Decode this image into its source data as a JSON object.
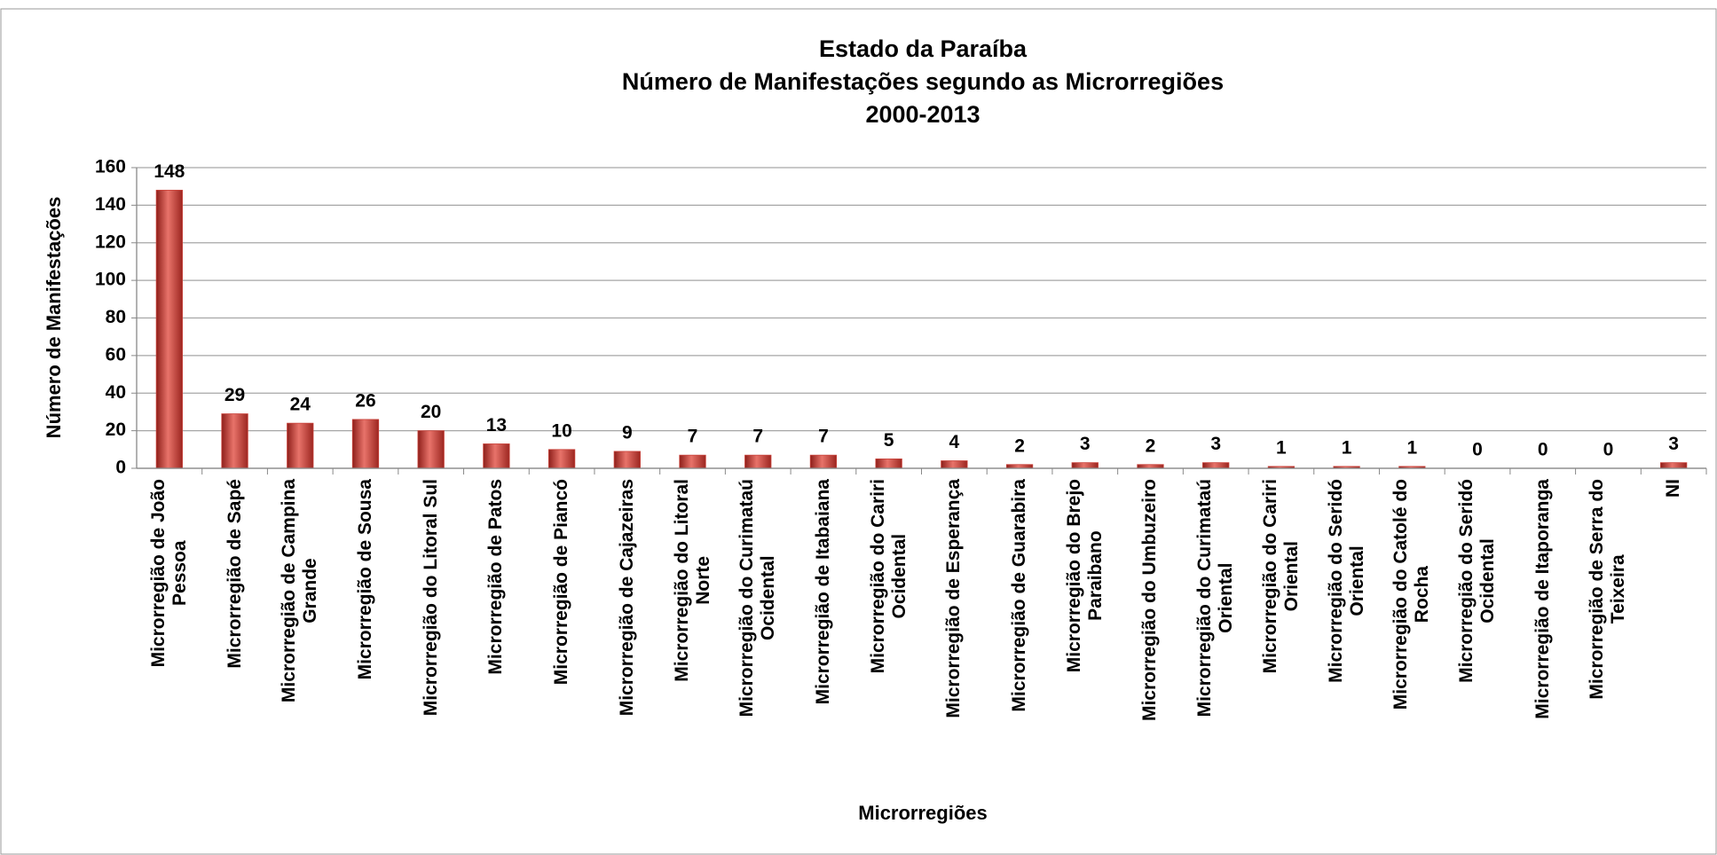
{
  "chart_data": {
    "type": "bar",
    "title": [
      "Estado da Paraíba",
      "Número de Manifestações segundo as Microrregiões",
      "2000-2013"
    ],
    "xlabel": "Microrregiões",
    "ylabel": "Número de Manifestações",
    "categories": [
      "Microrregião de João\nPessoa",
      "Microrregião de Sapé",
      "Microrregião de Campina\nGrande",
      "Microrregião de Sousa",
      "Microrregião do Litoral Sul",
      "Microrregião de Patos",
      "Microrregião de Piancó",
      "Microrregião de Cajazeiras",
      "Microrregião do Litoral\nNorte",
      "Microrregião do Curimataú\nOcidental",
      "Microrregião de Itabaiana",
      "Microrregião do Cariri\nOcidental",
      "Microrregião de Esperança",
      "Microrregião de Guarabira",
      "Microrregião do Brejo\nParaibano",
      "Microrregião do Umbuzeiro",
      "Microrregião do Curimataú\nOriental",
      "Microrregião do Cariri\nOriental",
      "Microrregião do Seridó\nOriental",
      "Microrregião do Catolé do\nRocha",
      "Microrregião do Seridó\nOcidental",
      "Microrregião de Itaporanga",
      "Microrregião de Serra do\nTeixeira",
      "NI"
    ],
    "values": [
      148,
      29,
      24,
      26,
      20,
      13,
      10,
      9,
      7,
      7,
      7,
      5,
      4,
      2,
      3,
      2,
      3,
      1,
      1,
      1,
      0,
      0,
      0,
      3
    ],
    "color": "#c9423a",
    "ylim": [
      0,
      160
    ],
    "yticks": [
      0,
      20,
      40,
      60,
      80,
      100,
      120,
      140,
      160
    ],
    "grid": true
  }
}
